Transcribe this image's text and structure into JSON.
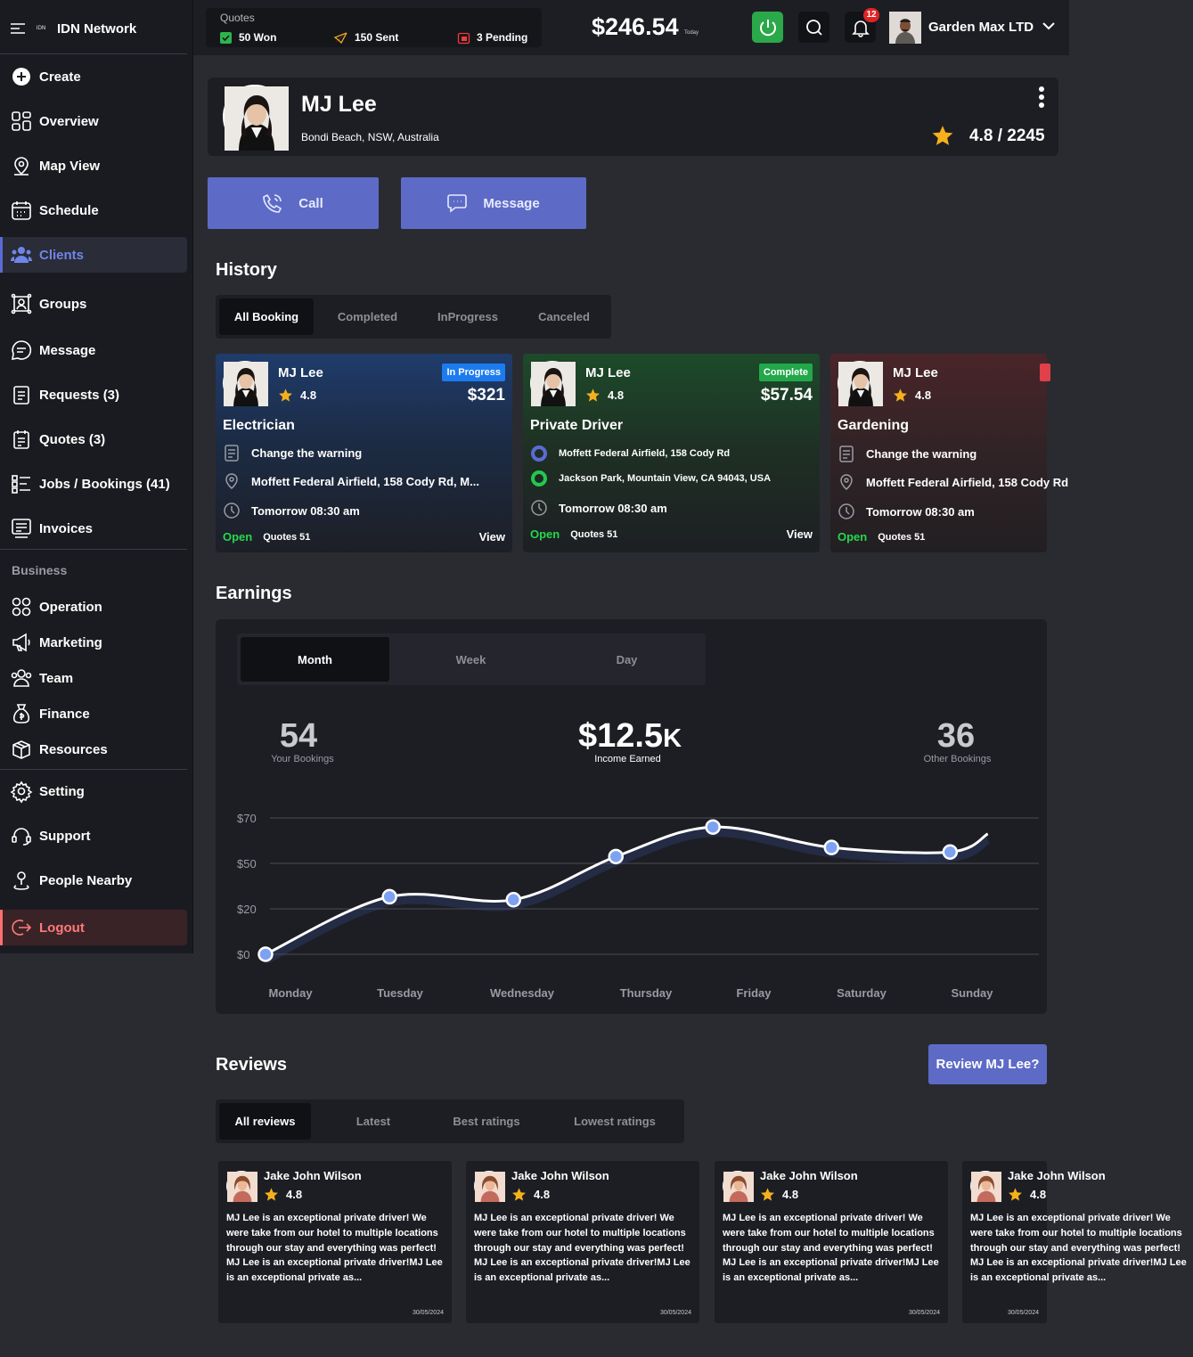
{
  "app": {
    "name": "IDN Network",
    "logo_text": "IDN"
  },
  "sidebar": {
    "items": [
      {
        "label": "Create",
        "icon": "plus-circle-icon"
      },
      {
        "label": "Overview",
        "icon": "grid-icon"
      },
      {
        "label": "Map View",
        "icon": "map-pin-icon"
      },
      {
        "label": "Schedule",
        "icon": "calendar-icon"
      },
      {
        "label": "Clients",
        "icon": "users-icon"
      },
      {
        "label": "Groups",
        "icon": "groups-icon"
      },
      {
        "label": "Message",
        "icon": "chat-icon"
      },
      {
        "label": "Requests (3)",
        "icon": "clipboard-icon"
      },
      {
        "label": "Quotes (3)",
        "icon": "quote-doc-icon"
      },
      {
        "label": "Jobs / Bookings (41)",
        "icon": "list-icon"
      },
      {
        "label": "Invoices",
        "icon": "invoice-icon"
      }
    ],
    "business_label": "Business",
    "business_items": [
      {
        "label": "Operation",
        "icon": "operation-icon"
      },
      {
        "label": "Marketing",
        "icon": "megaphone-icon"
      },
      {
        "label": "Team",
        "icon": "team-icon"
      },
      {
        "label": "Finance",
        "icon": "money-bag-icon"
      },
      {
        "label": "Resources",
        "icon": "box-icon"
      }
    ],
    "footer_items": [
      {
        "label": "Setting",
        "icon": "gear-icon"
      },
      {
        "label": "Support",
        "icon": "headset-icon"
      },
      {
        "label": "People Nearby",
        "icon": "person-pin-icon"
      }
    ],
    "logout_label": "Logout",
    "active": "Clients"
  },
  "header": {
    "quotes_label": "Quotes",
    "quote_stats": [
      {
        "label": "50 Won",
        "icon": "check-square-icon",
        "color": "#2fb34e"
      },
      {
        "label": "150 Sent",
        "icon": "paper-plane-icon",
        "color": "#f3a925"
      },
      {
        "label": "3 Pending",
        "icon": "calendar-clock-icon",
        "color": "#ef3b3b"
      }
    ],
    "today_amount": "$246.54",
    "today_label": "Today",
    "notification_count": "12",
    "user_name": "Garden Max LTD"
  },
  "profile": {
    "name": "MJ Lee",
    "location": "Bondi Beach, NSW, Australia",
    "rating": "4.8 / 2245",
    "call_label": "Call",
    "message_label": "Message"
  },
  "history": {
    "title": "History",
    "tabs": [
      "All Booking",
      "Completed",
      "InProgress",
      "Canceled"
    ],
    "cards": [
      {
        "name": "MJ Lee",
        "rating": "4.8",
        "status": "In Progress",
        "status_color": "#1d7bf0",
        "price": "$321",
        "service": "Electrician",
        "rows": [
          "Change the warning",
          "Moffett Federal Airfield, 158 Cody Rd, M...",
          "Tomorrow 08:30 am"
        ],
        "open": "Open",
        "quotes": "Quotes 51",
        "view": "View"
      },
      {
        "name": "MJ Lee",
        "rating": "4.8",
        "status": "Complete",
        "status_color": "#22a84a",
        "price": "$57.54",
        "service": "Private Driver",
        "rows": [
          "Moffett Federal Airfield, 158 Cody Rd",
          "Jackson Park, Mountain View, CA 94043, USA",
          "Tomorrow 08:30 am"
        ],
        "open": "Open",
        "quotes": "Quotes 51",
        "view": "View"
      },
      {
        "name": "MJ Lee",
        "rating": "4.8",
        "status": "",
        "status_color": "#e0404a",
        "price": "",
        "service": "Gardening",
        "rows": [
          "Change the warning",
          "Moffett Federal Airfield, 158 Cody Rd",
          "Tomorrow 08:30 am"
        ],
        "open": "Open",
        "quotes": "Quotes 51",
        "view": ""
      }
    ]
  },
  "earnings": {
    "title": "Earnings",
    "tabs": [
      "Month",
      "Week",
      "Day"
    ],
    "your_bookings": "54",
    "your_bookings_label": "Your Bookings",
    "income": "$12.5",
    "income_suffix": "K",
    "income_label": "Income Earned",
    "other_bookings": "36",
    "other_bookings_label": "Other Bookings"
  },
  "chart_data": {
    "type": "line",
    "categories": [
      "Monday",
      "Tuesday",
      "Wednesday",
      "Thursday",
      "Friday",
      "Saturday",
      "Sunday"
    ],
    "y_ticks": [
      "$0",
      "$20",
      "$50",
      "$70"
    ],
    "points": [
      {
        "x": 0.0,
        "y": 0
      },
      {
        "x": 1.15,
        "y": 28
      },
      {
        "x": 2.3,
        "y": 26
      },
      {
        "x": 3.25,
        "y": 53
      },
      {
        "x": 4.15,
        "y": 66
      },
      {
        "x": 5.25,
        "y": 57
      },
      {
        "x": 6.35,
        "y": 55
      }
    ],
    "curve_end": {
      "x": 6.7,
      "y": 63
    },
    "line_color": "#ffffff",
    "marker_color": "#7ea2f2",
    "grid": true
  },
  "reviews": {
    "title": "Reviews",
    "cta": "Review MJ Lee?",
    "tabs": [
      "All reviews",
      "Latest",
      "Best ratings",
      "Lowest ratings"
    ],
    "items": [
      {
        "name": "Jake John Wilson",
        "rating": "4.8",
        "text": "MJ Lee is an exceptional private driver! We were take from our hotel to multiple locations through our stay and everything was perfect! MJ Lee is an exceptional private driver!MJ Lee is an exceptional private as...",
        "date": "30/05/2024"
      },
      {
        "name": "Jake John Wilson",
        "rating": "4.8",
        "text": "MJ Lee is an exceptional private driver! We were take from our hotel to multiple locations through our stay and everything was perfect! MJ Lee is an exceptional private driver!MJ Lee is an exceptional private as...",
        "date": "30/05/2024"
      },
      {
        "name": "Jake John Wilson",
        "rating": "4.8",
        "text": "MJ Lee is an exceptional private driver! We were take from our hotel to multiple locations through our stay and everything was perfect! MJ Lee is an exceptional private driver!MJ Lee is an exceptional private as...",
        "date": "30/05/2024"
      },
      {
        "name": "Jake John Wilson",
        "rating": "4.8",
        "text": "MJ Lee is an exceptional private driver! We were take from our hotel to multiple locations through our stay and everything was perfect! MJ Lee is an exceptional private driver!MJ Lee is an exceptional private as...",
        "date": "30/05/2024"
      }
    ]
  }
}
